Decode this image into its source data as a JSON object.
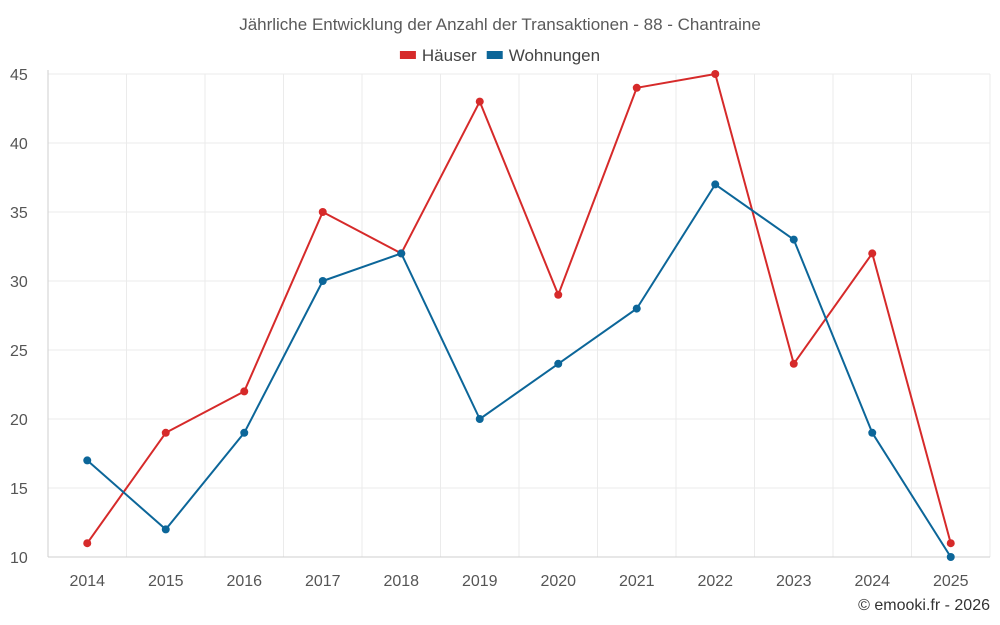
{
  "chart_data": {
    "type": "line",
    "title": "Jährliche Entwicklung der Anzahl der Transaktionen - 88 - Chantraine",
    "xlabel": "",
    "ylabel": "",
    "categories": [
      "2014",
      "2015",
      "2016",
      "2017",
      "2018",
      "2019",
      "2020",
      "2021",
      "2022",
      "2023",
      "2024",
      "2025"
    ],
    "ylim": [
      10,
      45
    ],
    "yticks": [
      10,
      15,
      20,
      25,
      30,
      35,
      40,
      45
    ],
    "grid": true,
    "legend_position": "top-center",
    "series": [
      {
        "name": "Häuser",
        "color": "#d62a2a",
        "values": [
          11,
          19,
          22,
          35,
          32,
          43,
          29,
          44,
          45,
          24,
          32,
          11
        ]
      },
      {
        "name": "Wohnungen",
        "color": "#0c6699",
        "values": [
          17,
          12,
          19,
          30,
          32,
          20,
          24,
          28,
          37,
          33,
          19,
          10
        ]
      }
    ]
  },
  "credit": "© emooki.fr - 2026"
}
